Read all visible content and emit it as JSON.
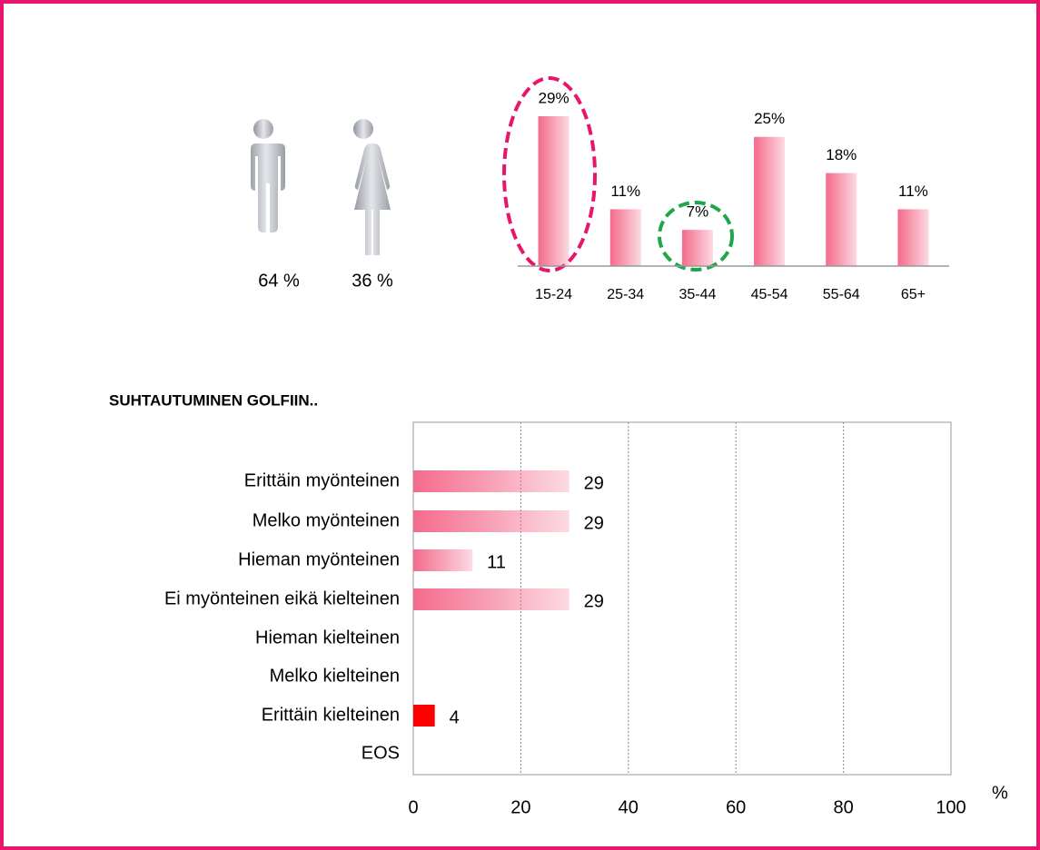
{
  "chart_data": [
    {
      "type": "icon",
      "values": [
        64,
        36
      ],
      "value_labels": [
        "64 %",
        "36 %"
      ],
      "color": "#b8bcc4"
    },
    {
      "type": "bar",
      "categories": [
        "15-24",
        "25-34",
        "35-44",
        "45-54",
        "55-64",
        "65+"
      ],
      "values": [
        29,
        11,
        7,
        25,
        18,
        11
      ],
      "value_labels": [
        "29%",
        "11%",
        "7%",
        "25%",
        "18%",
        "11%"
      ],
      "color": "#f46a8c"
    },
    {
      "type": "hbar",
      "title": "SUHTAUTUMINEN GOLFIIN..",
      "categories": [
        "Erittäin myönteinen",
        "Melko myönteinen",
        "Hieman myönteinen",
        "Ei myönteinen eikä kielteinen",
        "Hieman kielteinen",
        "Melko kielteinen",
        "Erittäin kielteinen",
        "EOS"
      ],
      "values": [
        29,
        29,
        11,
        29,
        null,
        null,
        4,
        null
      ],
      "colors": [
        "#f46a8c",
        "#f46a8c",
        "#f46a8c",
        "#f46a8c",
        "#f46a8c",
        "#f46a8c",
        "#ff0000",
        "#f46a8c"
      ],
      "xlim": [
        0,
        100
      ],
      "xticks": [
        0,
        20,
        40,
        60,
        80,
        100
      ],
      "xlabel": "%",
      "grid": true
    }
  ]
}
